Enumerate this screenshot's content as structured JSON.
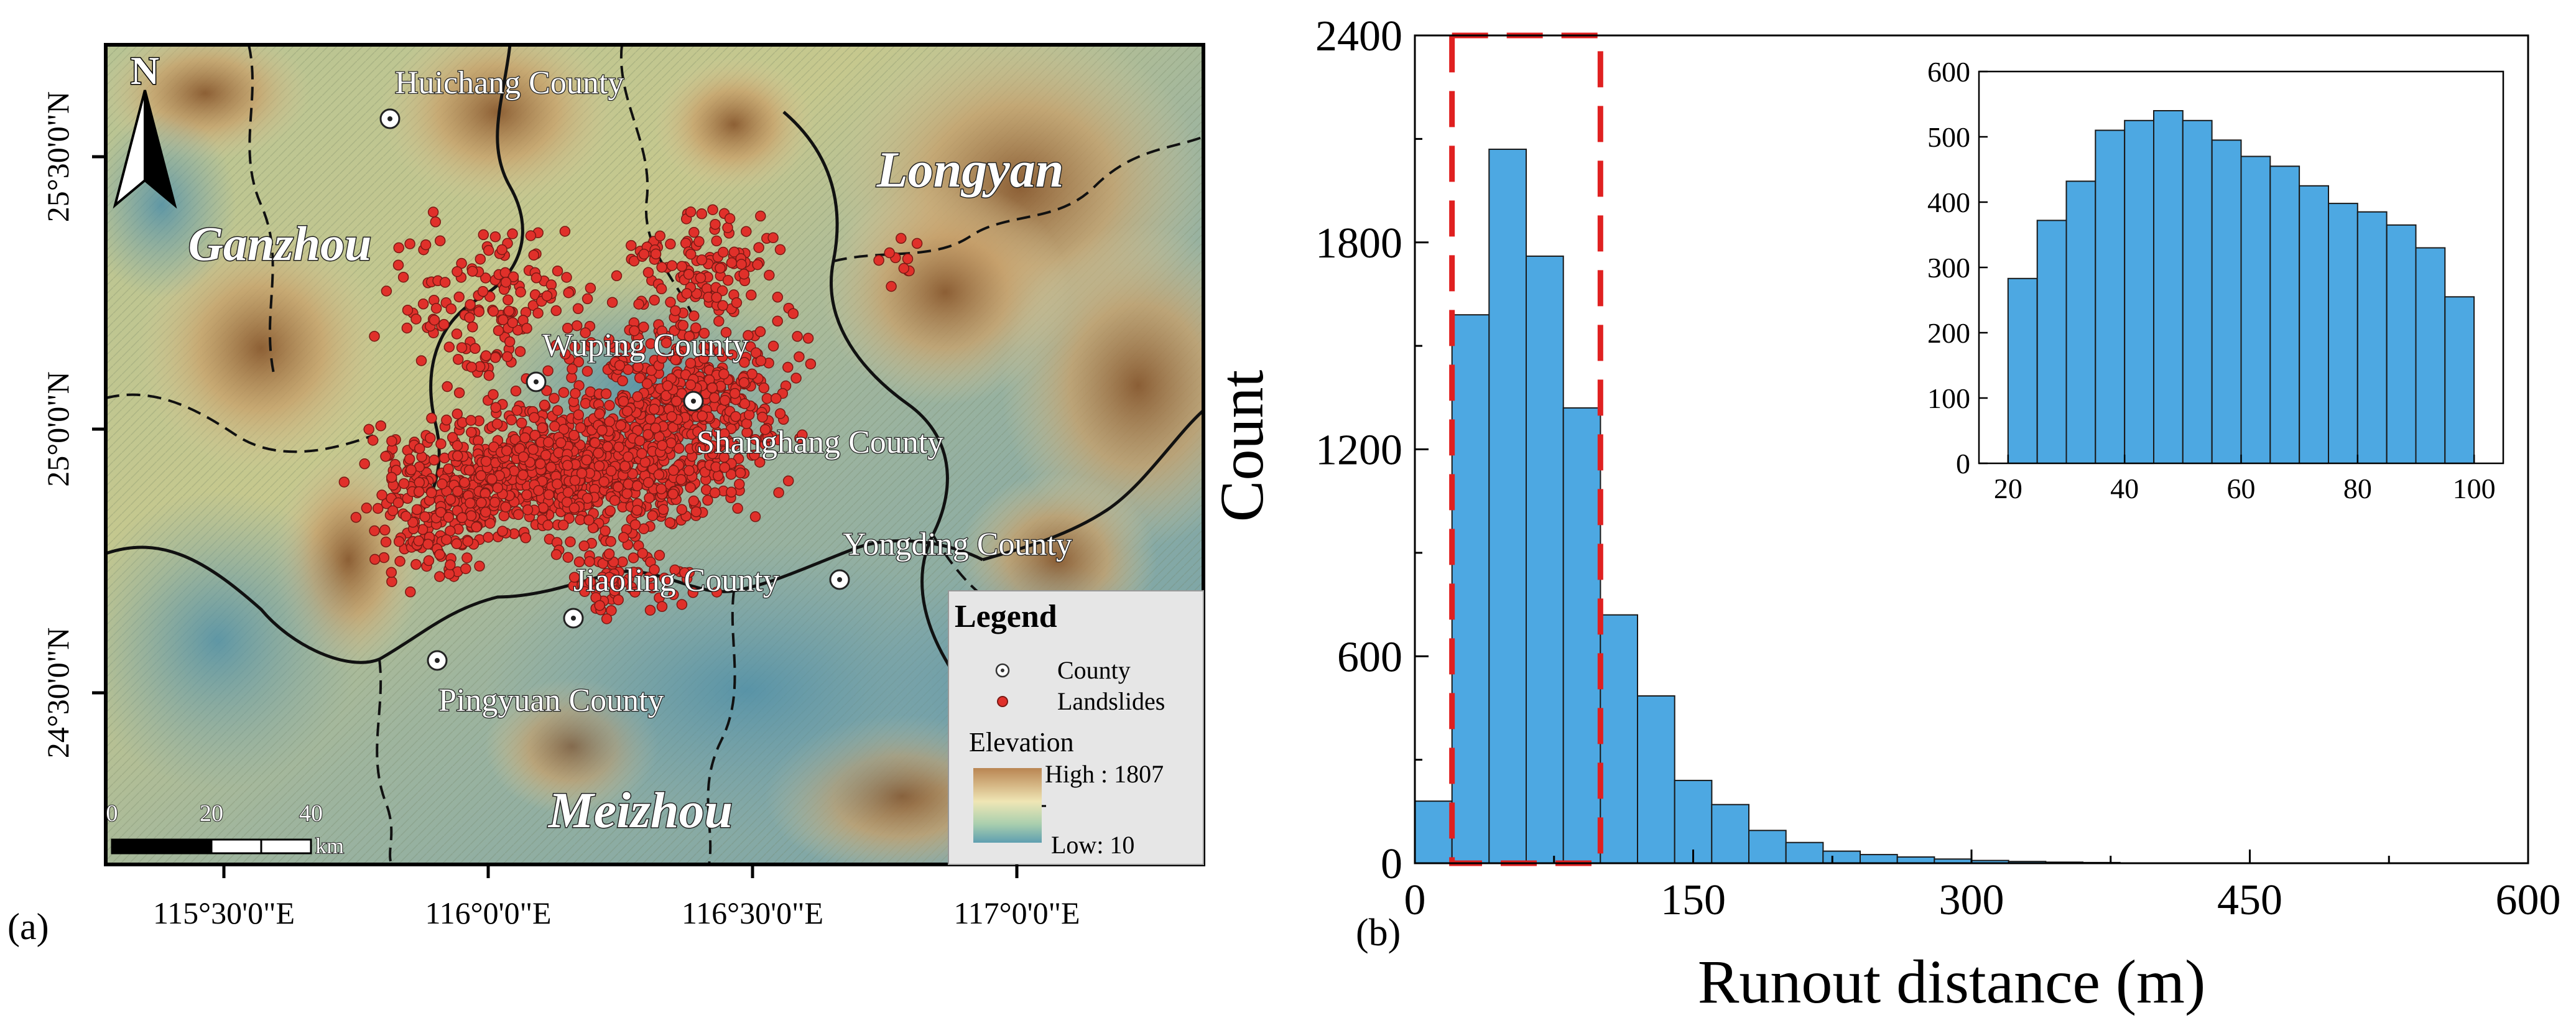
{
  "panel_a": {
    "label": "(a)",
    "regions": [
      {
        "name": "Ganzhou"
      },
      {
        "name": "Longyan"
      },
      {
        "name": "Meizhou"
      }
    ],
    "counties": [
      {
        "name": "Huichang County"
      },
      {
        "name": "Wuping County"
      },
      {
        "name": "Shanghang County"
      },
      {
        "name": "Yongding County"
      },
      {
        "name": "Jiaoling County"
      },
      {
        "name": "Pingyuan County"
      }
    ],
    "north_label": "N",
    "scale_bar": {
      "ticks": [
        "0",
        "20",
        "40"
      ],
      "unit": "km"
    },
    "lon_labels": [
      "115°30'0\"E",
      "116°0'0\"E",
      "116°30'0\"E",
      "117°0'0\"E"
    ],
    "lat_labels": [
      "25°30'0\"N",
      "25°0'0\"N",
      "24°30'0\"N"
    ],
    "legend": {
      "title": "Legend",
      "county_label": "County",
      "landslides_label": "Landslides",
      "elevation_label": "Elevation",
      "high_label": "High : 1807",
      "low_label": "Low: 10"
    },
    "colors": {
      "landslide": "#e0302a",
      "low": "#4f90a8",
      "mid": "#e8dfa3",
      "high": "#8c5b32"
    }
  },
  "panel_b": {
    "label": "(b)",
    "colors": {
      "bar": "#4da8e2",
      "highlight": "#e02020"
    }
  },
  "chart_data": [
    {
      "type": "bar",
      "xlabel": "Runout distance (m)",
      "ylabel": "Count",
      "xlim": [
        0,
        600
      ],
      "ylim": [
        0,
        2400
      ],
      "xticks": [
        0,
        150,
        300,
        450,
        600
      ],
      "yticks": [
        0,
        600,
        1200,
        1800,
        2400
      ],
      "bin_width": 20,
      "bins": [
        0,
        20,
        40,
        60,
        80,
        100,
        120,
        140,
        160,
        180,
        200,
        220,
        240,
        260,
        280,
        300,
        320,
        340,
        360
      ],
      "values": [
        180,
        1590,
        2070,
        1760,
        1320,
        720,
        485,
        240,
        170,
        95,
        60,
        35,
        25,
        18,
        12,
        8,
        5,
        3,
        2
      ],
      "highlight_range": [
        20,
        100
      ]
    },
    {
      "type": "bar",
      "xlim": [
        15,
        105
      ],
      "ylim": [
        0,
        600
      ],
      "xticks": [
        20,
        40,
        60,
        80,
        100
      ],
      "yticks": [
        0,
        100,
        200,
        300,
        400,
        500,
        600
      ],
      "bin_width": 5,
      "bins": [
        20,
        25,
        30,
        35,
        40,
        45,
        50,
        55,
        60,
        65,
        70,
        75,
        80,
        85,
        90,
        95
      ],
      "values": [
        283,
        372,
        432,
        510,
        525,
        540,
        525,
        495,
        470,
        455,
        425,
        398,
        385,
        365,
        330,
        255
      ]
    }
  ]
}
